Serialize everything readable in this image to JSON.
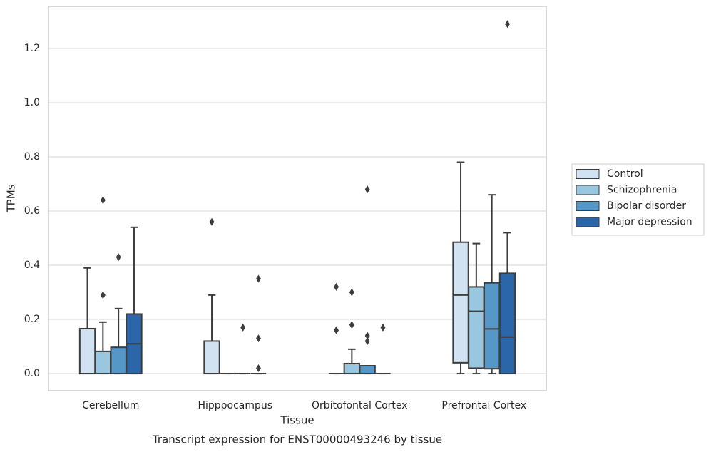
{
  "chart_data": {
    "type": "box",
    "title": "Transcript expression for ENST00000493246 by tissue",
    "xlabel": "Tissue",
    "ylabel": "TPMs",
    "categories": [
      "Cerebellum",
      "Hipppocampus",
      "Orbitofontal Cortex",
      "Prefrontal Cortex"
    ],
    "ylim": [
      -0.063,
      1.355
    ],
    "yticks": [
      {
        "value": 0,
        "label": "0.0"
      },
      0.2,
      0.4,
      0.6,
      0.8,
      {
        "value": 1,
        "label": "1.0"
      },
      1.2
    ],
    "grid": true,
    "legend": "right",
    "series": [
      {
        "name": "Control",
        "color": "#d1e2f2",
        "boxes": [
          {
            "whislo": 0,
            "q1": 0,
            "med": 0,
            "q3": 0.166,
            "whishi": 0.39,
            "fliers": []
          },
          {
            "whislo": 0,
            "q1": 0,
            "med": 0,
            "q3": 0.12,
            "whishi": 0.29,
            "fliers": [
              0.56
            ]
          },
          {
            "whislo": 0,
            "q1": 0,
            "med": 0,
            "q3": 0,
            "whishi": 0,
            "fliers": [
              0.32,
              0.16
            ]
          },
          {
            "whislo": 0,
            "q1": 0.04,
            "med": 0.29,
            "q3": 0.485,
            "whishi": 0.78,
            "fliers": []
          }
        ]
      },
      {
        "name": "Schizophrenia",
        "color": "#9ac7e0",
        "boxes": [
          {
            "whislo": 0,
            "q1": 0,
            "med": 0,
            "q3": 0.082,
            "whishi": 0.19,
            "fliers": [
              0.29,
              0.64
            ]
          },
          {
            "whislo": 0,
            "q1": 0,
            "med": 0,
            "q3": 0,
            "whishi": 0,
            "fliers": []
          },
          {
            "whislo": 0,
            "q1": 0,
            "med": 0,
            "q3": 0.037,
            "whishi": 0.09,
            "fliers": [
              0.3,
              0.18
            ]
          },
          {
            "whislo": 0,
            "q1": 0.02,
            "med": 0.23,
            "q3": 0.32,
            "whishi": 0.48,
            "fliers": []
          }
        ]
      },
      {
        "name": "Bipolar disorder",
        "color": "#5598c8",
        "boxes": [
          {
            "whislo": 0,
            "q1": 0,
            "med": 0,
            "q3": 0.097,
            "whishi": 0.24,
            "fliers": [
              0.43
            ]
          },
          {
            "whislo": 0,
            "q1": 0,
            "med": 0,
            "q3": 0,
            "whishi": 0,
            "fliers": [
              0.17
            ]
          },
          {
            "whislo": 0,
            "q1": 0,
            "med": 0,
            "q3": 0.029,
            "whishi": 0.029,
            "fliers": [
              0.68,
              0.14,
              0.12
            ]
          },
          {
            "whislo": 0,
            "q1": 0.018,
            "med": 0.165,
            "q3": 0.335,
            "whishi": 0.66,
            "fliers": []
          }
        ]
      },
      {
        "name": "Major depression",
        "color": "#2a66a8",
        "boxes": [
          {
            "whislo": 0,
            "q1": 0,
            "med": 0.11,
            "q3": 0.22,
            "whishi": 0.54,
            "fliers": []
          },
          {
            "whislo": 0,
            "q1": 0,
            "med": 0,
            "q3": 0,
            "whishi": 0,
            "fliers": [
              0.35,
              0.13,
              0.02
            ]
          },
          {
            "whislo": 0,
            "q1": 0,
            "med": 0,
            "q3": 0,
            "whishi": 0,
            "fliers": [
              0.17
            ]
          },
          {
            "whislo": 0,
            "q1": 0,
            "med": 0.135,
            "q3": 0.37,
            "whishi": 0.52,
            "fliers": [
              1.29
            ]
          }
        ]
      }
    ]
  }
}
